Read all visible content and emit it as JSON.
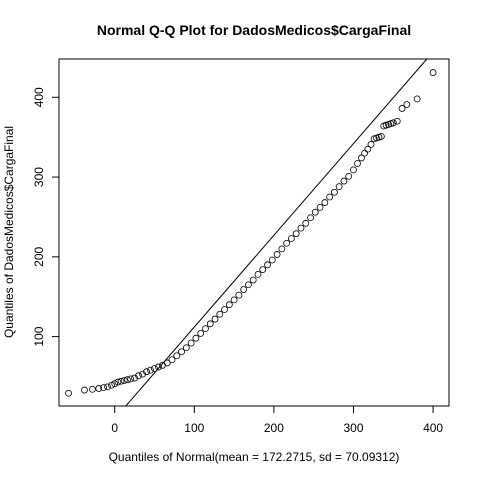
{
  "chart_data": {
    "type": "scatter",
    "title": "Normal Q-Q Plot for DadosMedicos$CargaFinal",
    "xlabel": "Quantiles of Normal(mean = 172.2715, sd = 70.09312)",
    "ylabel": "Quantiles of DadosMedicos$CargaFinal",
    "xlim": [
      -70,
      420
    ],
    "ylim": [
      13,
      448
    ],
    "x_ticks": [
      0,
      100,
      200,
      300,
      400
    ],
    "y_ticks": [
      100,
      200,
      300,
      400
    ],
    "grid": false,
    "legend": "none",
    "reference_line": {
      "slope": 1.15,
      "intercept": -3
    },
    "series": [
      {
        "points": {
          "x": [
            -58,
            -38,
            -28,
            -20,
            -14,
            -9,
            -4,
            0,
            4,
            8,
            12,
            16,
            20,
            25,
            30,
            35,
            40,
            45,
            50,
            55,
            60,
            66,
            72,
            78,
            84,
            90,
            96,
            102,
            108,
            114,
            120,
            126,
            132,
            138,
            144,
            150,
            156,
            162,
            168,
            174,
            180,
            186,
            192,
            198,
            204,
            210,
            216,
            222,
            228,
            234,
            240,
            246,
            252,
            258,
            264,
            270,
            276,
            282,
            288,
            294,
            300,
            305,
            310,
            314,
            318,
            322,
            326,
            329,
            332,
            335,
            338,
            341,
            344,
            347,
            350,
            355,
            361,
            367,
            380,
            400
          ],
          "y": [
            29,
            33,
            34,
            35,
            36,
            37,
            39,
            41,
            43,
            44,
            45,
            46,
            47,
            48,
            51,
            53,
            56,
            58,
            60,
            62,
            64,
            67,
            71,
            76,
            81,
            86,
            92,
            98,
            104,
            110,
            116,
            122,
            128,
            134,
            140,
            146,
            152,
            159,
            165,
            171,
            178,
            184,
            190,
            196,
            203,
            210,
            217,
            223,
            229,
            236,
            242,
            249,
            256,
            262,
            268,
            275,
            281,
            288,
            295,
            301,
            309,
            317,
            324,
            330,
            335,
            341,
            348,
            349,
            350,
            351,
            364,
            365,
            366,
            367,
            368,
            370,
            386,
            391,
            398,
            431
          ]
        }
      }
    ]
  }
}
